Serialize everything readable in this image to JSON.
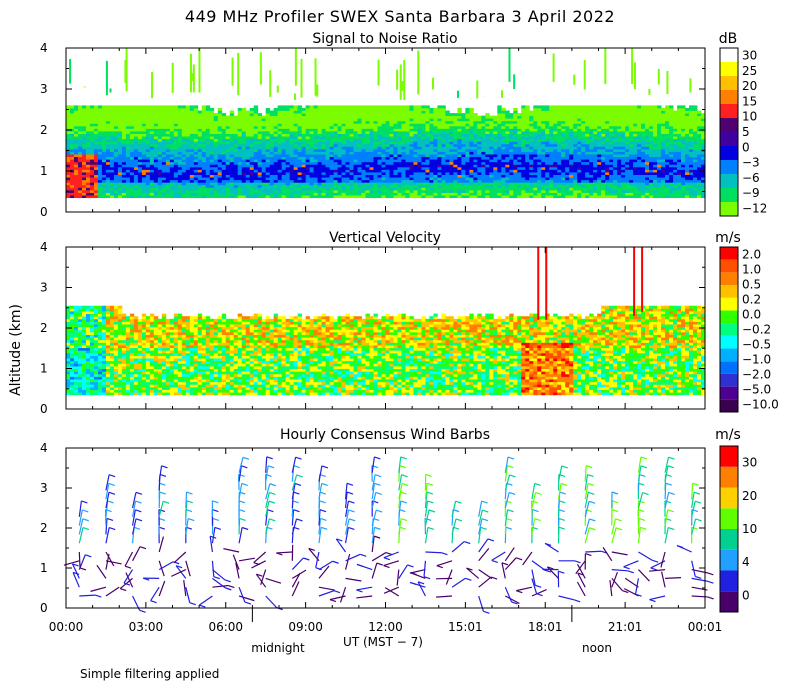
{
  "title": "449 MHz Profiler SWEX Santa Barbara  3 April 2022",
  "footnote": "Simple filtering applied",
  "y_axis_label": "Altitude (km)",
  "x_axis": {
    "ticks": [
      "00:00",
      "03:00",
      "06:00",
      "09:00",
      "12:00",
      "15:01",
      "18:01",
      "21:01",
      "00:01"
    ],
    "label": "UT  (MST − 7)",
    "midnight": "midnight",
    "noon": "noon"
  },
  "colors": {
    "snr": [
      "#7cfc00",
      "#00e060",
      "#00c0c0",
      "#0080ff",
      "#0000e0",
      "#4000a0",
      "#500070",
      "#ff2020",
      "#ff8000",
      "#ffc000",
      "#ffff00",
      "#ffffff"
    ],
    "vel": [
      "#3c0050",
      "#500090",
      "#3030d0",
      "#0070ff",
      "#00b0ff",
      "#00ffff",
      "#00ff80",
      "#30ff00",
      "#ffff00",
      "#ffc000",
      "#ff8000",
      "#ff5000",
      "#ff0000"
    ],
    "wind": [
      "#4a006a",
      "#2020e0",
      "#20a0ff",
      "#00d090",
      "#60ff00",
      "#ffd000",
      "#ff8000",
      "#ff0000"
    ]
  },
  "chart_data": [
    {
      "type": "heatmap",
      "title": "Signal to Noise Ratio",
      "unit": "dB",
      "colorbar_labels": [
        "30",
        "25",
        "20",
        "15",
        "10",
        "5",
        "0",
        "−3",
        "−6",
        "−9",
        "−12"
      ],
      "ylim": [
        0,
        4
      ],
      "yticks": [
        "0",
        "1",
        "2",
        "3",
        "4"
      ],
      "x": "time UT 00:00 to 00:01 next day"
    },
    {
      "type": "heatmap",
      "title": "Vertical Velocity",
      "unit": "m/s",
      "colorbar_labels": [
        "2.0",
        "1.0",
        "0.5",
        "0.2",
        "0.0",
        "−0.2",
        "−0.5",
        "−1.0",
        "−2.0",
        "−5.0",
        "−10.0"
      ],
      "ylim": [
        0,
        4
      ],
      "yticks": [
        "0",
        "1",
        "2",
        "3",
        "4"
      ]
    },
    {
      "type": "scatter",
      "title": "Hourly Consensus Wind Barbs",
      "unit": "m/s",
      "colorbar_labels": [
        "30",
        "20",
        "10",
        "4",
        "0"
      ],
      "ylim": [
        0,
        4
      ],
      "yticks": [
        "0",
        "1",
        "2",
        "3",
        "4"
      ]
    }
  ]
}
